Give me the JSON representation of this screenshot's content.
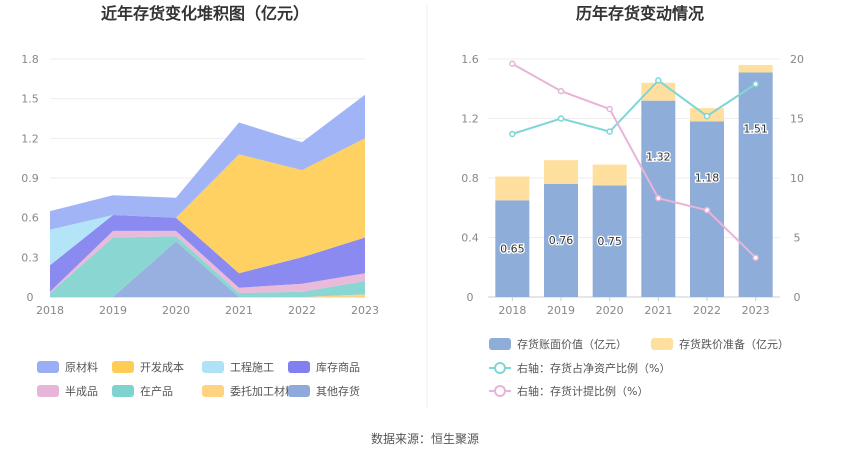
{
  "source_text": "数据来源：恒生聚源",
  "chart_data": [
    {
      "type": "area",
      "title": "近年存货变化堆积图（亿元）",
      "x": [
        "2018",
        "2019",
        "2020",
        "2021",
        "2022",
        "2023"
      ],
      "ylim": [
        0,
        1.8
      ],
      "yticks": [
        "0",
        "0.3",
        "0.6",
        "0.9",
        "1.2",
        "1.5",
        "1.8"
      ],
      "legend_position": "bottom",
      "series": [
        {
          "name": "其他存货",
          "color": "#8fa9dc",
          "values": [
            0.0,
            0.0,
            0.42,
            0.0,
            0.0,
            0.0
          ]
        },
        {
          "name": "委托加工材料",
          "color": "#ffd37f",
          "values": [
            0.0,
            0.0,
            0.0,
            0.0,
            0.0,
            0.02
          ]
        },
        {
          "name": "在产品",
          "color": "#7fd3cf",
          "values": [
            0.03,
            0.45,
            0.04,
            0.03,
            0.04,
            0.1
          ]
        },
        {
          "name": "半成品",
          "color": "#e8b4d8",
          "values": [
            0.01,
            0.05,
            0.04,
            0.04,
            0.06,
            0.06
          ]
        },
        {
          "name": "库存商品",
          "color": "#8080f0",
          "values": [
            0.2,
            0.12,
            0.1,
            0.11,
            0.2,
            0.27
          ]
        },
        {
          "name": "工程施工",
          "color": "#aee2f7",
          "values": [
            0.27,
            0.0,
            0.0,
            0.0,
            0.0,
            0.0
          ]
        },
        {
          "name": "开发成本",
          "color": "#ffcc55",
          "values": [
            0.0,
            0.0,
            0.0,
            0.9,
            0.66,
            0.75
          ]
        },
        {
          "name": "原材料",
          "color": "#99aef5",
          "values": [
            0.14,
            0.15,
            0.15,
            0.24,
            0.21,
            0.33
          ]
        }
      ],
      "legend_order": [
        "原材料",
        "开发成本",
        "工程施工",
        "库存商品",
        "半成品",
        "在产品",
        "委托加工材料",
        "其他存货"
      ]
    },
    {
      "type": "bar",
      "title": "历年存货变动情况",
      "x": [
        "2018",
        "2019",
        "2020",
        "2021",
        "2022",
        "2023"
      ],
      "ylim": [
        0,
        1.6
      ],
      "yticks": [
        "0",
        "0.4",
        "0.8",
        "1.2",
        "1.6"
      ],
      "y2lim": [
        0,
        20
      ],
      "y2ticks": [
        "0",
        "5",
        "10",
        "15",
        "20"
      ],
      "legend_position": "bottom",
      "bar_series": [
        {
          "name": "存货账面价值（亿元）",
          "color": "#8fadd9",
          "values": [
            0.65,
            0.76,
            0.75,
            1.32,
            1.18,
            1.51
          ],
          "labels": [
            "0.65",
            "0.76",
            "0.75",
            "1.32",
            "1.18",
            "1.51"
          ]
        },
        {
          "name": "存货跌价准备（亿元）",
          "color": "#ffdf9e",
          "values": [
            0.16,
            0.16,
            0.14,
            0.12,
            0.09,
            0.05
          ]
        }
      ],
      "line_series": [
        {
          "name": "右轴：存货占净资产比例（%）",
          "color": "#7fd6d6",
          "values": [
            13.7,
            15.0,
            13.9,
            18.2,
            15.2,
            17.9
          ]
        },
        {
          "name": "右轴：存货计提比例（%）",
          "color": "#e8b4d8",
          "values": [
            19.6,
            17.3,
            15.8,
            8.3,
            7.3,
            3.3
          ]
        }
      ]
    }
  ]
}
